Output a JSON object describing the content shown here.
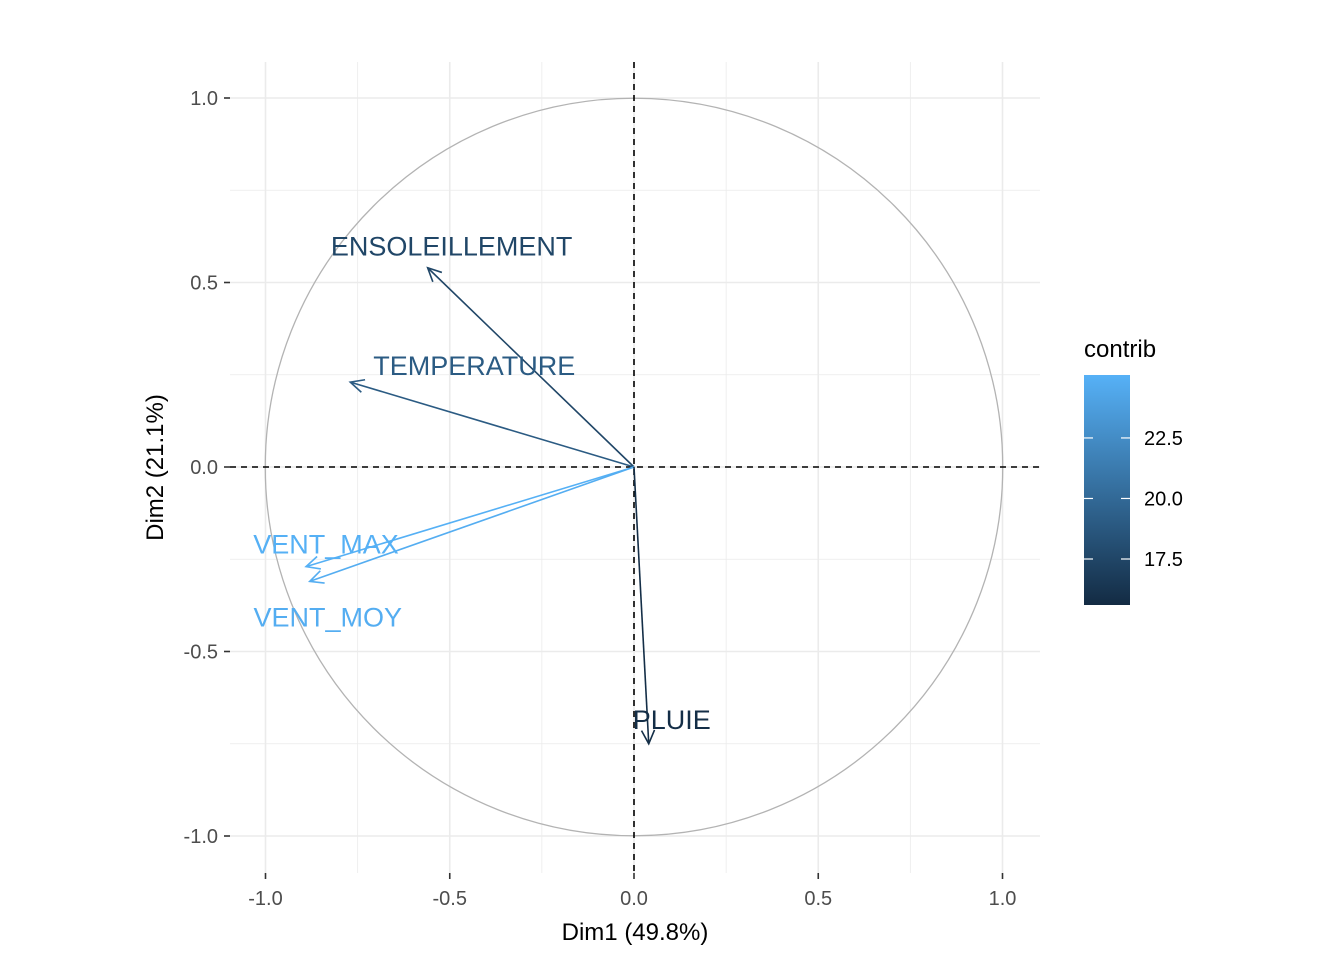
{
  "chart_data": {
    "type": "scatter",
    "subtype": "pca-correlation-circle",
    "xlabel": "Dim1 (49.8%)",
    "ylabel": "Dim2 (21.1%)",
    "xlim": [
      -1.05,
      1.1
    ],
    "ylim": [
      -1.1,
      1.1
    ],
    "x_ticks": [
      -1.0,
      -0.5,
      0.0,
      0.5,
      1.0
    ],
    "y_ticks": [
      -1.0,
      -0.5,
      0.0,
      0.5,
      1.0
    ],
    "x_tick_labels": [
      "-1.0",
      "-0.5",
      "0.0",
      "0.5",
      "1.0"
    ],
    "y_tick_labels": [
      "-1.0",
      "-0.5",
      "0.0",
      "0.5",
      "1.0"
    ],
    "grid": true,
    "unit_circle": true,
    "reference_lines": "dashed at x=0 and y=0",
    "variables": [
      {
        "name": "ENSOLEILLEMENT",
        "x": -0.56,
        "y": 0.54,
        "contrib": 17.5
      },
      {
        "name": "TEMPERATURE",
        "x": -0.77,
        "y": 0.23,
        "contrib": 19.0
      },
      {
        "name": "VENT_MAX",
        "x": -0.89,
        "y": -0.27,
        "contrib": 25.0
      },
      {
        "name": "VENT_MOY",
        "x": -0.88,
        "y": -0.31,
        "contrib": 24.8
      },
      {
        "name": "PLUIE",
        "x": 0.04,
        "y": -0.75,
        "contrib": 15.8
      }
    ],
    "legend": {
      "title": "contrib",
      "placement": "right",
      "ticks": [
        17.5,
        20.0,
        22.5
      ],
      "tick_labels": [
        "17.5",
        "20.0",
        "22.5"
      ],
      "range": [
        15.6,
        25.1
      ],
      "color_low": "#132b43",
      "color_high": "#56b1f7"
    },
    "colors": {
      "grid": "#ebebeb",
      "circle": "#b3b3b3",
      "reference": "#000000"
    }
  }
}
